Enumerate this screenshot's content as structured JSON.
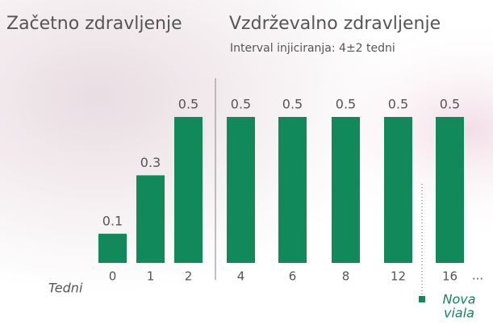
{
  "chart_data": {
    "type": "bar",
    "initial_title": "Začetno zdravljenje",
    "maintenance_title": "Vzdrževalno zdravljenje",
    "subtitle": "Interval injiciranja: 4±2 tedni",
    "x_label": "Tedni",
    "categories": [
      "0",
      "1",
      "2",
      "4",
      "6",
      "8",
      "12",
      "16"
    ],
    "values": [
      0.1,
      0.3,
      0.5,
      0.5,
      0.5,
      0.5,
      0.5,
      0.5
    ],
    "continuation": "...",
    "color": "#12895a",
    "annotation": {
      "lines": [
        "Nova",
        "viala"
      ],
      "color": "#12895a"
    }
  }
}
